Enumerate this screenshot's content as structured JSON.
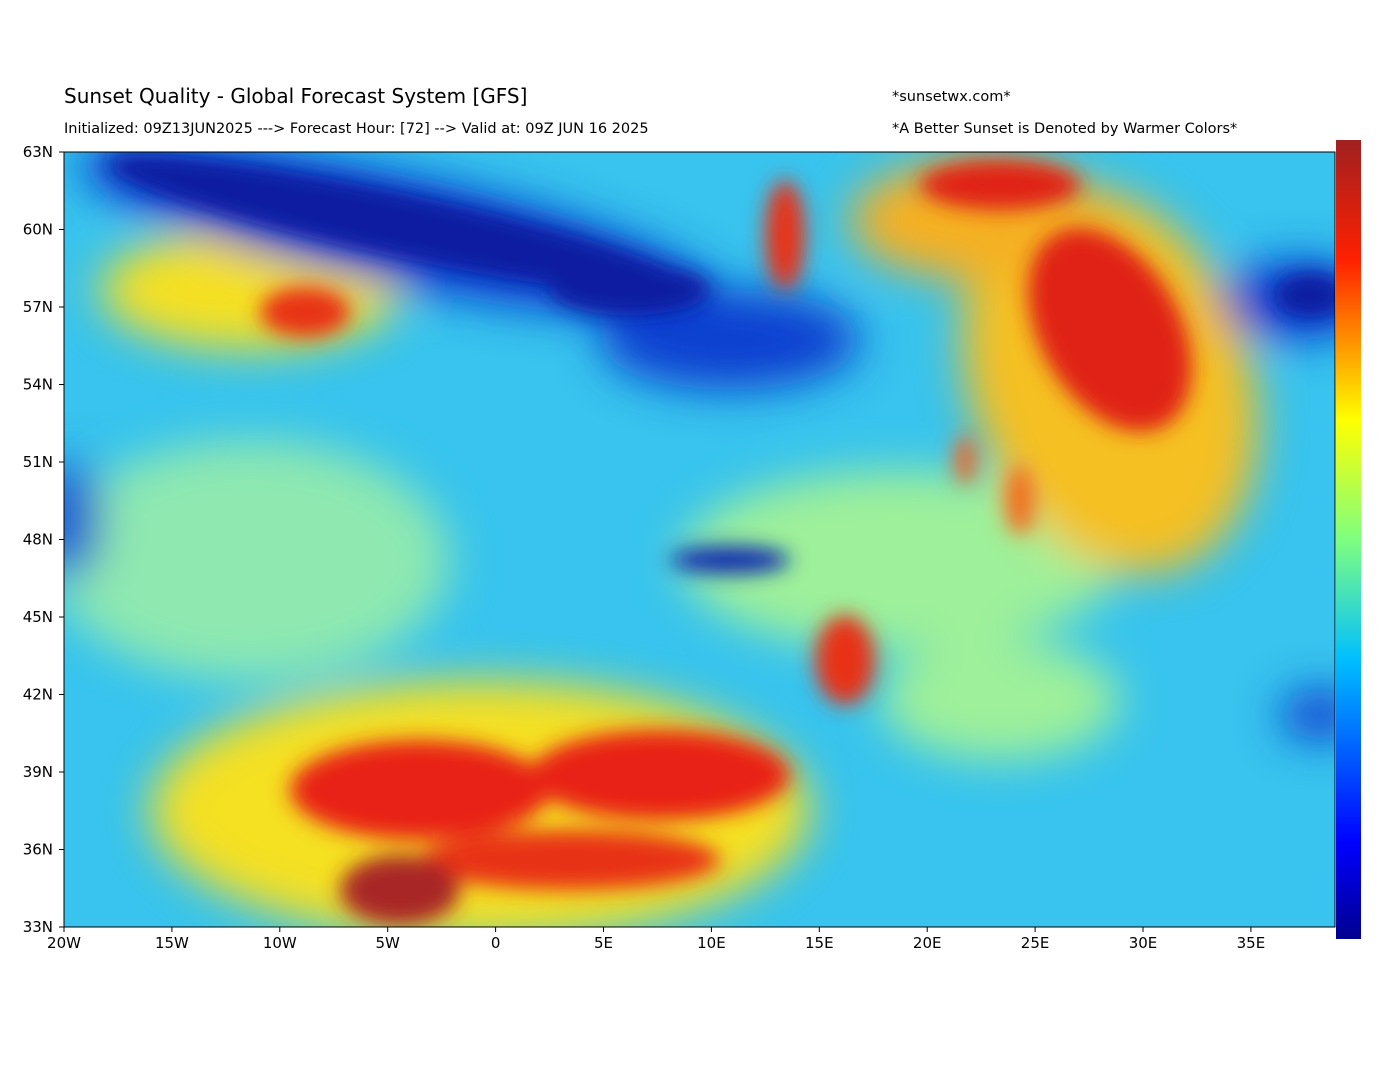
{
  "header": {
    "title": "Sunset Quality - Global Forecast System [GFS]",
    "source": "*sunsetwx.com*",
    "subtitle": "Initialized: 09Z13JUN2025 ---> Forecast Hour: [72] --> Valid at: 09Z  JUN 16 2025",
    "note": "*A Better Sunset is Denoted by Warmer Colors*"
  },
  "map": {
    "lon_labels": [
      "20W",
      "15W",
      "10W",
      "5W",
      "0",
      "5E",
      "10E",
      "15E",
      "20E",
      "25E",
      "30E",
      "35E"
    ],
    "lat_labels": [
      "63N",
      "60N",
      "57N",
      "54N",
      "51N",
      "48N",
      "45N",
      "42N",
      "39N",
      "36N",
      "33N"
    ]
  }
}
